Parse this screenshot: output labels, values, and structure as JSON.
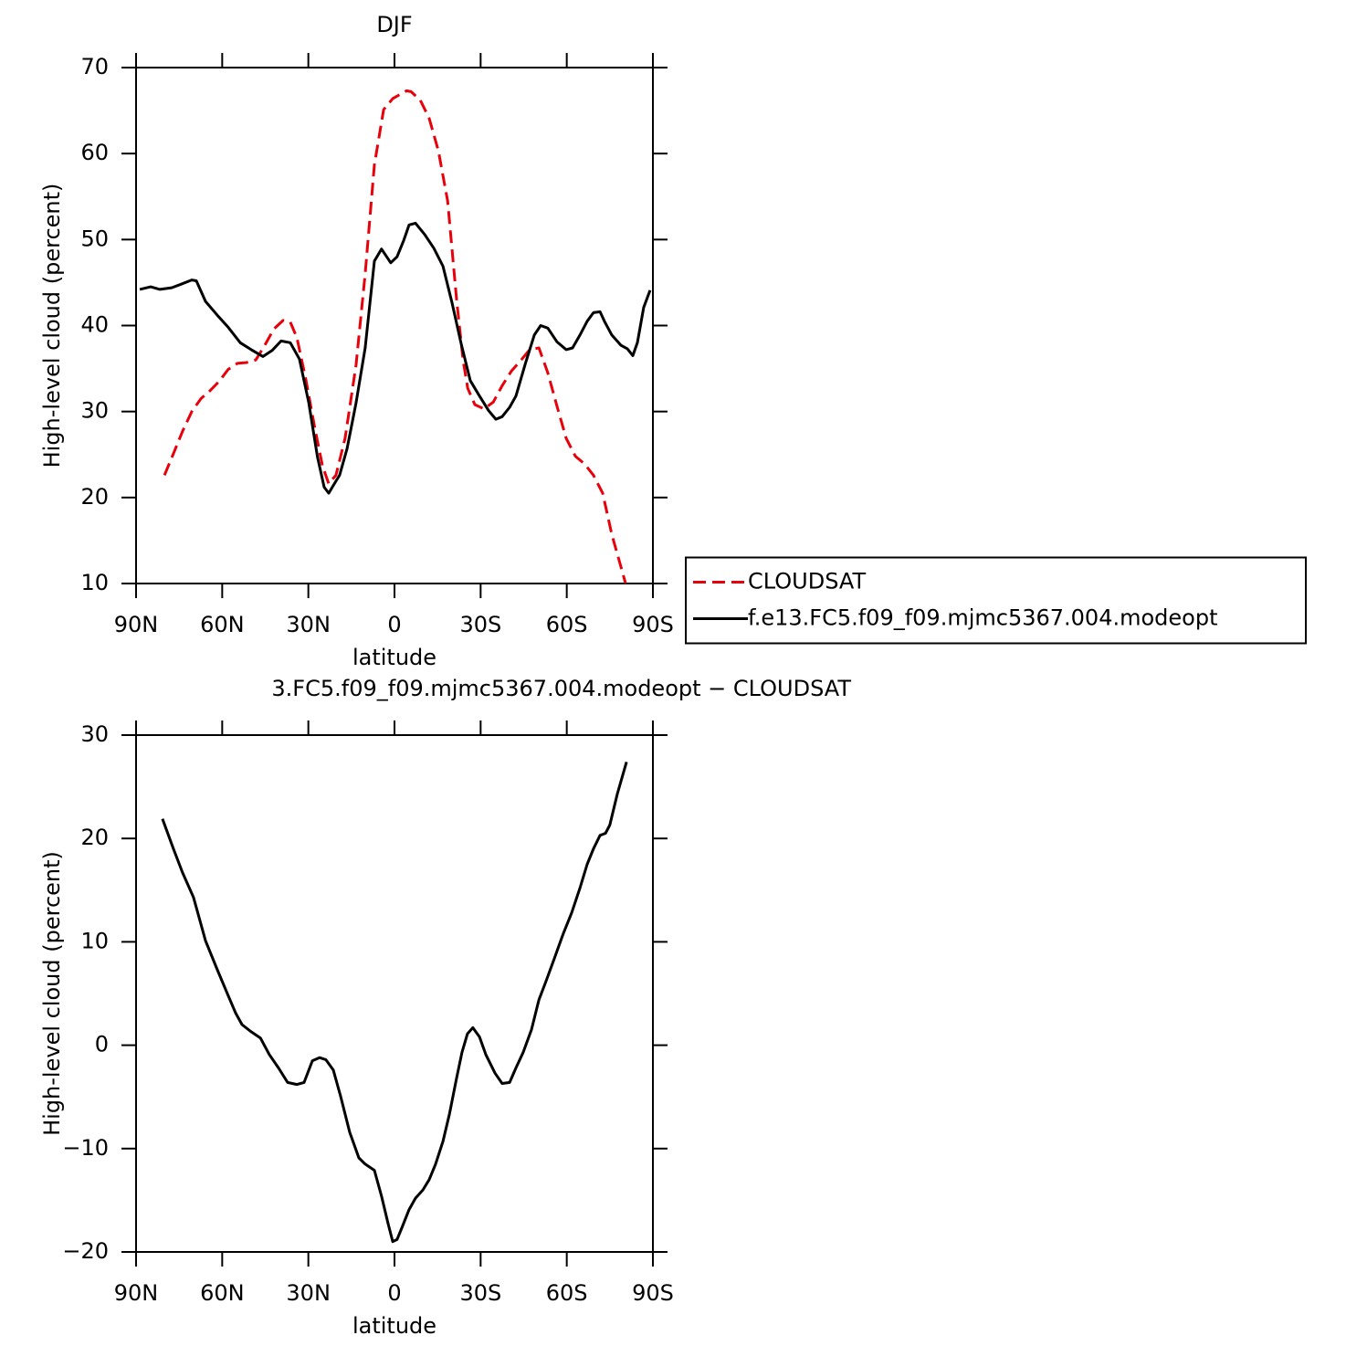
{
  "chart_data": [
    {
      "type": "line",
      "title": "DJF",
      "x_label": "latitude",
      "y_label": "High-level cloud (percent)",
      "xlim": [
        90,
        -90
      ],
      "xticks": [
        {
          "value": 90,
          "label": "90N"
        },
        {
          "value": 60,
          "label": "60N"
        },
        {
          "value": 30,
          "label": "30N"
        },
        0,
        {
          "value": -30,
          "label": "30S"
        },
        {
          "value": -60,
          "label": "60S"
        },
        {
          "value": -90,
          "label": "90S"
        }
      ],
      "ylim": [
        10,
        70
      ],
      "yticks": [
        10,
        20,
        30,
        40,
        50,
        60,
        70
      ],
      "legend": "right",
      "series": [
        {
          "name": "CLOUDSAT",
          "color": "#e8000b",
          "dashed": true,
          "x": [
            80.1,
            77.0,
            73.8,
            70.6,
            67.4,
            64.3,
            61.1,
            57.9,
            54.7,
            51.5,
            48.3,
            45.2,
            42.0,
            38.8,
            36.3,
            34.0,
            30.9,
            27.7,
            25.1,
            22.9,
            20.4,
            17.2,
            13.4,
            10.2,
            7.0,
            3.8,
            0.6,
            -2.6,
            -4.2,
            -5.8,
            -9.0,
            -12.1,
            -15.3,
            -18.5,
            -21.7,
            -23.9,
            -25.5,
            -28.0,
            -31.2,
            -34.4,
            -37.5,
            -40.7,
            -43.9,
            -47.1,
            -50.3,
            -53.4,
            -56.6,
            -59.8,
            -63.0,
            -66.2,
            -69.3,
            -72.5,
            -75.7,
            -78.9,
            -80.5
          ],
          "values": [
            22.6,
            25.1,
            27.7,
            30.0,
            31.5,
            32.4,
            33.5,
            34.9,
            35.6,
            35.7,
            36.0,
            37.7,
            39.6,
            40.6,
            40.4,
            38.6,
            33.8,
            28.0,
            23.7,
            21.6,
            22.6,
            26.9,
            35.4,
            46.0,
            58.7,
            65.1,
            66.4,
            67.0,
            67.3,
            67.2,
            66.2,
            64.1,
            60.3,
            54.5,
            42.8,
            35.9,
            32.7,
            30.8,
            30.3,
            31.1,
            33.0,
            34.7,
            35.9,
            37.2,
            37.4,
            34.5,
            30.6,
            26.9,
            24.8,
            23.9,
            22.6,
            20.5,
            15.7,
            11.9,
            10.0
          ]
        },
        {
          "name": "f.e13.FC5.f09_f09.mjmc5367.004.modeopt",
          "color": "#000000",
          "dashed": false,
          "x": [
            88.7,
            84.9,
            81.7,
            77.6,
            74.4,
            70.6,
            69.0,
            65.8,
            61.7,
            57.9,
            53.7,
            49.9,
            45.8,
            42.6,
            39.5,
            36.3,
            33.1,
            29.9,
            26.8,
            24.5,
            22.9,
            21.3,
            19.1,
            16.5,
            13.4,
            10.2,
            7.0,
            4.5,
            1.3,
            -0.9,
            -3.2,
            -5.1,
            -7.3,
            -10.5,
            -13.7,
            -16.9,
            -20.0,
            -23.2,
            -26.4,
            -29.6,
            -32.8,
            -35.3,
            -37.5,
            -40.1,
            -42.3,
            -45.5,
            -48.7,
            -50.9,
            -53.4,
            -56.6,
            -59.8,
            -62.0,
            -64.6,
            -67.1,
            -69.3,
            -71.6,
            -73.1,
            -75.7,
            -78.9,
            -81.1,
            -83.0,
            -84.6,
            -86.8,
            -89.0
          ],
          "values": [
            44.2,
            44.5,
            44.2,
            44.4,
            44.8,
            45.3,
            45.2,
            42.8,
            41.2,
            39.8,
            38.0,
            37.2,
            36.4,
            37.1,
            38.2,
            38.0,
            36.1,
            31.1,
            24.7,
            21.2,
            20.5,
            21.4,
            22.6,
            25.7,
            31.0,
            37.4,
            47.5,
            48.9,
            47.3,
            48.0,
            49.9,
            51.7,
            51.9,
            50.6,
            49.0,
            46.9,
            42.7,
            37.9,
            33.6,
            31.8,
            30.1,
            29.1,
            29.4,
            30.5,
            31.8,
            35.5,
            38.9,
            40.0,
            39.7,
            38.1,
            37.2,
            37.4,
            38.9,
            40.5,
            41.5,
            41.6,
            40.5,
            38.9,
            37.7,
            37.3,
            36.5,
            38.0,
            42.1,
            44.1
          ]
        }
      ]
    },
    {
      "type": "line",
      "title": "3.FC5.f09_f09.mjmc5367.004.modeopt − CLOUDSAT",
      "x_label": "latitude",
      "y_label": "High-level cloud (percent)",
      "xlim": [
        90,
        -90
      ],
      "xticks": [
        {
          "value": 90,
          "label": "90N"
        },
        {
          "value": 60,
          "label": "60N"
        },
        {
          "value": 30,
          "label": "30N"
        },
        0,
        {
          "value": -30,
          "label": "30S"
        },
        {
          "value": -60,
          "label": "60S"
        },
        {
          "value": -90,
          "label": "90S"
        }
      ],
      "ylim": [
        -20,
        30
      ],
      "yticks": [
        {
          "value": -20,
          "label": "−20"
        },
        {
          "value": -10,
          "label": "−10"
        },
        0,
        10,
        20,
        30
      ],
      "series": [
        {
          "color": "#000000",
          "dashed": false,
          "x": [
            80.8,
            77.0,
            73.8,
            70.0,
            65.8,
            61.7,
            57.9,
            55.3,
            53.1,
            49.9,
            46.7,
            43.6,
            40.4,
            37.2,
            34.0,
            31.5,
            28.6,
            26.1,
            23.9,
            21.3,
            18.8,
            15.6,
            12.4,
            10.2,
            7.0,
            4.5,
            2.2,
            0.6,
            -0.9,
            -2.5,
            -5.1,
            -7.3,
            -9.9,
            -12.1,
            -14.3,
            -16.9,
            -19.1,
            -21.7,
            -23.5,
            -25.4,
            -27.3,
            -29.6,
            -31.8,
            -35.0,
            -37.5,
            -40.1,
            -42.3,
            -44.8,
            -47.7,
            -50.3,
            -52.8,
            -55.7,
            -58.8,
            -61.7,
            -64.6,
            -67.1,
            -69.3,
            -71.6,
            -73.5,
            -75.0,
            -77.6,
            -80.8
          ],
          "values": [
            21.9,
            19.0,
            16.7,
            14.3,
            10.1,
            7.3,
            4.8,
            3.1,
            2.0,
            1.3,
            0.7,
            -0.9,
            -2.2,
            -3.6,
            -3.8,
            -3.6,
            -1.5,
            -1.2,
            -1.4,
            -2.4,
            -4.9,
            -8.4,
            -10.9,
            -11.5,
            -12.1,
            -14.6,
            -17.3,
            -19.0,
            -18.8,
            -17.7,
            -15.9,
            -14.8,
            -14.0,
            -13.0,
            -11.5,
            -9.3,
            -6.7,
            -3.1,
            -0.7,
            1.1,
            1.7,
            0.8,
            -0.9,
            -2.7,
            -3.7,
            -3.6,
            -2.2,
            -0.7,
            1.5,
            4.4,
            6.2,
            8.4,
            10.8,
            12.8,
            15.2,
            17.5,
            19.0,
            20.3,
            20.5,
            21.3,
            24.3,
            27.4
          ]
        }
      ]
    }
  ]
}
